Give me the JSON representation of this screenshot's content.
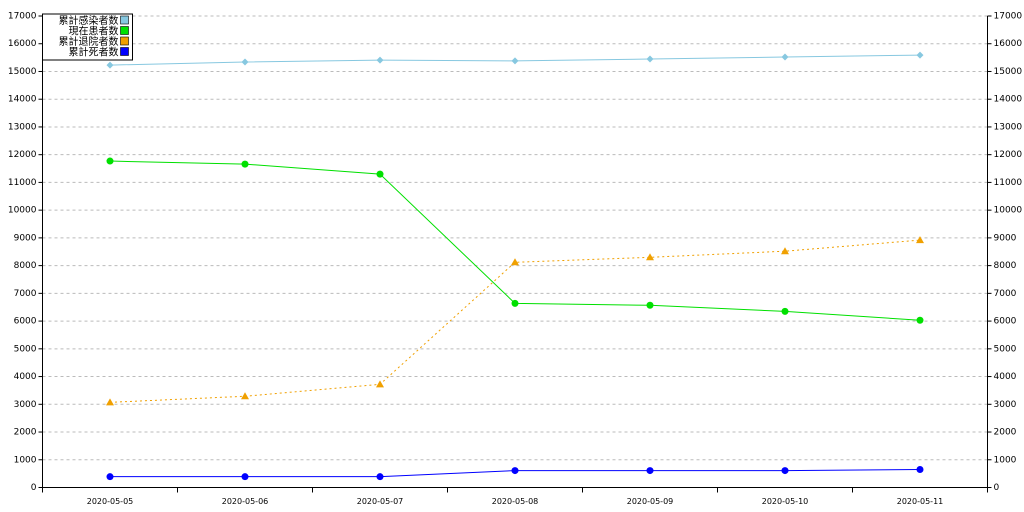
{
  "chart_data": {
    "type": "line",
    "categories": [
      "2020-05-05",
      "2020-05-06",
      "2020-05-07",
      "2020-05-08",
      "2020-05-09",
      "2020-05-10",
      "2020-05-11"
    ],
    "series": [
      {
        "name": "累計感染者数",
        "color": "#87c8e0",
        "marker": "diamond",
        "dashed": false,
        "values": [
          15230,
          15340,
          15410,
          15380,
          15450,
          15520,
          15590
        ]
      },
      {
        "name": "現在患者数",
        "color": "#00e000",
        "marker": "circle",
        "dashed": false,
        "values": [
          11770,
          11660,
          11300,
          6640,
          6570,
          6350,
          6030
        ]
      },
      {
        "name": "累計退院者数",
        "color": "#f0a000",
        "marker": "triangle",
        "dashed": true,
        "values": [
          3070,
          3290,
          3720,
          8120,
          8300,
          8520,
          8920
        ]
      },
      {
        "name": "累計死者数",
        "color": "#0000ff",
        "marker": "circle",
        "dashed": false,
        "values": [
          390,
          390,
          390,
          610,
          610,
          610,
          650
        ]
      }
    ],
    "ylim": [
      0,
      17000
    ],
    "yticks": [
      0,
      1000,
      2000,
      3000,
      4000,
      5000,
      6000,
      7000,
      8000,
      9000,
      10000,
      11000,
      12000,
      13000,
      14000,
      15000,
      16000,
      17000
    ],
    "y2lim": [
      0,
      17000
    ],
    "y2ticks": [
      0,
      1000,
      2000,
      3000,
      4000,
      5000,
      6000,
      7000,
      8000,
      9000,
      10000,
      11000,
      12000,
      13000,
      14000,
      15000,
      16000,
      17000
    ],
    "grid": true,
    "legend": "top-left"
  }
}
